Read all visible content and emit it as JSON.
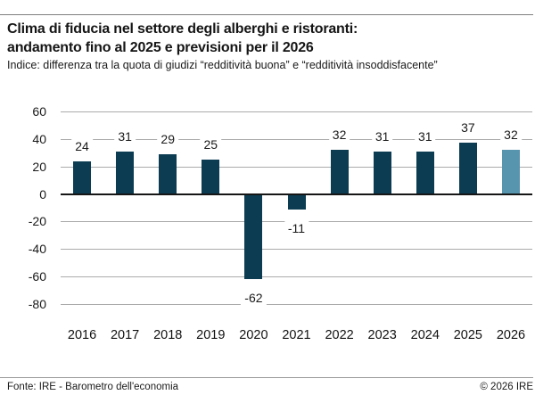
{
  "header": {
    "title_line1": "Clima di fiducia nel settore degli alberghi e ristoranti:",
    "title_line2": "andamento fino al 2025 e previsioni per il 2026",
    "subtitle": "Indice: differenza tra la quota di giudizi “redditività buona” e “redditività insoddisfacente”"
  },
  "footer": {
    "source": "Fonte: IRE - Barometro dell'economia",
    "copyright": "© 2026 IRE"
  },
  "colors": {
    "bar": "#0b3c52",
    "bar_forecast": "#5794ae",
    "gridline": "#ababab",
    "zero_line": "#161616"
  },
  "chart_data": {
    "type": "bar",
    "categories": [
      "2016",
      "2017",
      "2018",
      "2019",
      "2020",
      "2021",
      "2022",
      "2023",
      "2024",
      "2025",
      "2026"
    ],
    "values": [
      24,
      31,
      29,
      25,
      -62,
      -11,
      32,
      31,
      31,
      37,
      32
    ],
    "forecast_categories": [
      "2026"
    ],
    "title": "Clima di fiducia nel settore degli alberghi e ristoranti: andamento fino al 2025 e previsioni per il 2026",
    "xlabel": "",
    "ylabel": "",
    "ylim": [
      -80,
      60
    ],
    "yticks": [
      60,
      40,
      20,
      0,
      -20,
      -40,
      -60,
      -80
    ],
    "grid": true,
    "data_labels": true,
    "legend": false
  }
}
